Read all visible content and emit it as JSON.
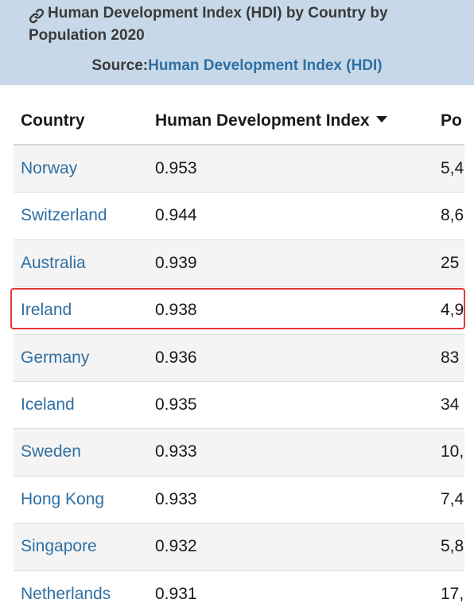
{
  "header": {
    "title_line1": "Human Development Index (HDI) by Country by",
    "title_line2": "Population 2020",
    "source_label": "Source:",
    "source_link": "Human Development Index (HDI)",
    "icon": "link-icon"
  },
  "table": {
    "columns": {
      "country": "Country",
      "hdi": "Human Development Index",
      "population": "Po"
    },
    "sort_icon": "sort-desc-icon",
    "rows": [
      {
        "country": "Norway",
        "hdi": "0.953",
        "population": "5,4"
      },
      {
        "country": "Switzerland",
        "hdi": "0.944",
        "population": "8,6"
      },
      {
        "country": "Australia",
        "hdi": "0.939",
        "population": "25"
      },
      {
        "country": "Ireland",
        "hdi": "0.938",
        "population": "4,9"
      },
      {
        "country": "Germany",
        "hdi": "0.936",
        "population": "83"
      },
      {
        "country": "Iceland",
        "hdi": "0.935",
        "population": "34"
      },
      {
        "country": "Sweden",
        "hdi": "0.933",
        "population": "10,"
      },
      {
        "country": "Hong Kong",
        "hdi": "0.933",
        "population": "7,4"
      },
      {
        "country": "Singapore",
        "hdi": "0.932",
        "population": "5,8"
      },
      {
        "country": "Netherlands",
        "hdi": "0.931",
        "population": "17,"
      }
    ],
    "highlighted_row": "Ireland",
    "highlight_color": "#e03a3a",
    "link_color": "#2f6fa3",
    "header_bg": "#c7d9e8"
  }
}
